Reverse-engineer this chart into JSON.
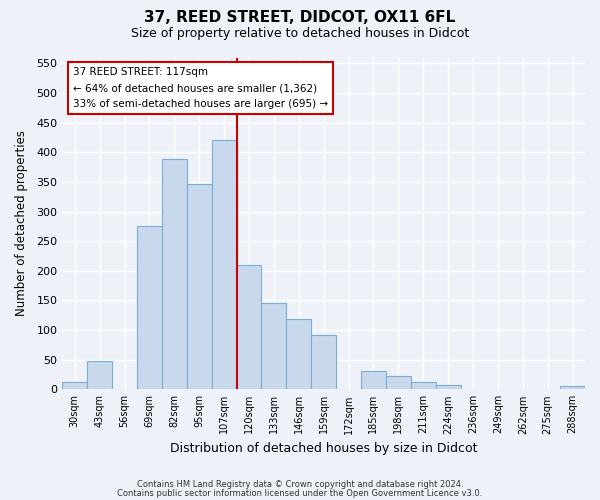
{
  "title": "37, REED STREET, DIDCOT, OX11 6FL",
  "subtitle": "Size of property relative to detached houses in Didcot",
  "xlabel": "Distribution of detached houses by size in Didcot",
  "ylabel": "Number of detached properties",
  "categories": [
    "30sqm",
    "43sqm",
    "56sqm",
    "69sqm",
    "82sqm",
    "95sqm",
    "107sqm",
    "120sqm",
    "133sqm",
    "146sqm",
    "159sqm",
    "172sqm",
    "185sqm",
    "198sqm",
    "211sqm",
    "224sqm",
    "236sqm",
    "249sqm",
    "262sqm",
    "275sqm",
    "288sqm"
  ],
  "values": [
    12,
    48,
    0,
    275,
    388,
    346,
    420,
    210,
    145,
    118,
    92,
    0,
    31,
    22,
    12,
    8,
    0,
    0,
    0,
    0,
    5
  ],
  "bar_color": "#c8d9ee",
  "bar_edge_color": "#7aaed4",
  "vline_color": "#cc0000",
  "annotation_title": "37 REED STREET: 117sqm",
  "annotation_line1": "← 64% of detached houses are smaller (1,362)",
  "annotation_line2": "33% of semi-detached houses are larger (695) →",
  "annotation_box_color": "#ffffff",
  "annotation_box_edge_color": "#cc0000",
  "ylim": [
    0,
    560
  ],
  "yticks": [
    0,
    50,
    100,
    150,
    200,
    250,
    300,
    350,
    400,
    450,
    500,
    550
  ],
  "footer1": "Contains HM Land Registry data © Crown copyright and database right 2024.",
  "footer2": "Contains public sector information licensed under the Open Government Licence v3.0.",
  "background_color": "#eef2f8",
  "grid_color": "#ffffff",
  "title_fontsize": 11,
  "subtitle_fontsize": 9
}
